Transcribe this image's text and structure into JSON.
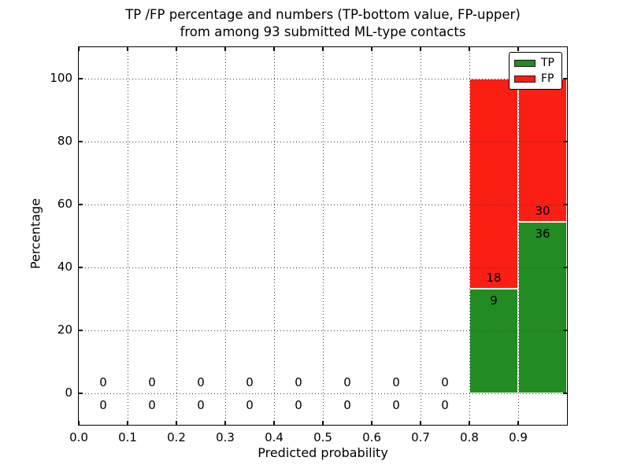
{
  "chart_data": {
    "type": "bar",
    "stacked": true,
    "title_line1": "TP /FP percentage and numbers (TP-bottom value, FP-upper)",
    "title_line2": "from among 93 submitted ML-type contacts",
    "xlabel": "Predicted probability",
    "ylabel": "Percentage",
    "xlim": [
      0.0,
      1.0
    ],
    "ylim": [
      -10,
      110
    ],
    "x_tick_labels": [
      "0.0",
      "0.1",
      "0.2",
      "0.3",
      "0.4",
      "0.5",
      "0.6",
      "0.7",
      "0.8",
      "0.9"
    ],
    "y_tick_values": [
      0,
      20,
      40,
      60,
      80,
      100
    ],
    "grid": {
      "visible": true,
      "style": "dotted",
      "color": "#3c3c3c"
    },
    "bin_edges": [
      0.0,
      0.1,
      0.2,
      0.3,
      0.4,
      0.5,
      0.6,
      0.7,
      0.8,
      0.9,
      1.0
    ],
    "series": [
      {
        "name": "TP",
        "color": "#228b22",
        "counts": [
          0,
          0,
          0,
          0,
          0,
          0,
          0,
          0,
          9,
          36
        ]
      },
      {
        "name": "FP",
        "color": "#fa1e14",
        "counts": [
          0,
          0,
          0,
          0,
          0,
          0,
          0,
          0,
          18,
          30
        ]
      }
    ],
    "stacked_bar_percentages": [
      {
        "bin_range": "0.8-0.9",
        "tp_pct": 33.3,
        "fp_pct": 66.7
      },
      {
        "bin_range": "0.9-1.0",
        "tp_pct": 54.5,
        "fp_pct": 45.5
      }
    ],
    "total_contacts": 93,
    "label_rule": "FP count shown above TP/FP boundary, TP count shown below boundary",
    "legend": {
      "position": "upper right",
      "entries": [
        {
          "label": "TP",
          "color": "#228b22"
        },
        {
          "label": "FP",
          "color": "#fa1e14"
        }
      ]
    }
  }
}
